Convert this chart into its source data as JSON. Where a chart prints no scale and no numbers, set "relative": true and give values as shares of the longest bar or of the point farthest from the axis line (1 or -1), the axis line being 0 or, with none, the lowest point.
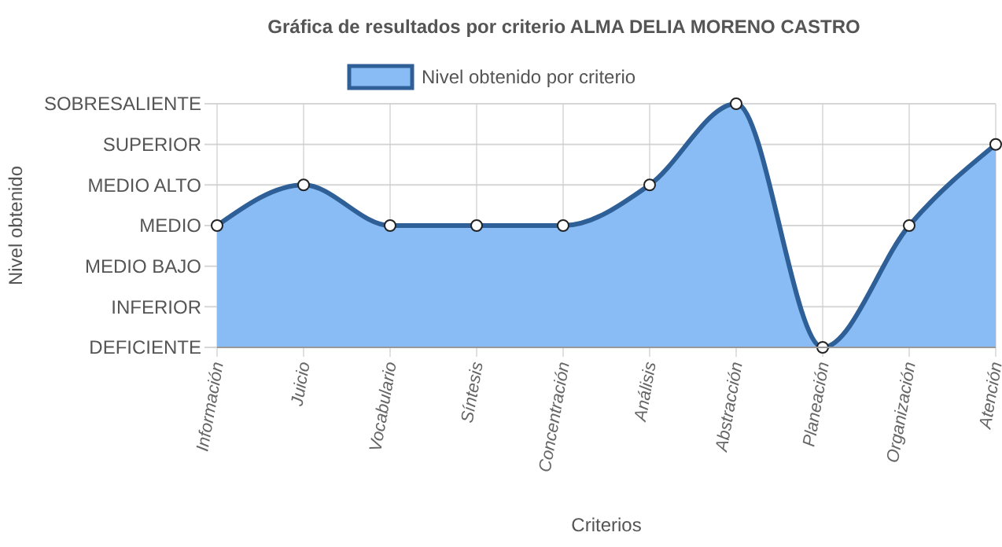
{
  "chart_data": {
    "type": "area",
    "title": "Gráfica de resultados por criterio ALMA DELIA MORENO CASTRO",
    "xlabel": "Criterios",
    "categories": [
      "Información",
      "Juicio",
      "Vocabulario",
      "Síntesis",
      "Concentración",
      "Análisis",
      "Abstracción",
      "Planeación",
      "Organización",
      "Atención"
    ],
    "series": [
      {
        "name": "Nivel obtenido por criterio",
        "color": "#2e5f97",
        "values": [
          0.5,
          0.667,
          0.5,
          0.5,
          0.5,
          0.667,
          1,
          0,
          0.5,
          0.833
        ]
      }
    ],
    "relative": true,
    "annotations": [
      "Nivel obtenido",
      "DEFICIENTE",
      "INFERIOR",
      "MEDIO BAJO",
      "MEDIO",
      "MEDIO ALTO",
      "SUPERIOR",
      "SOBRESALIENTE"
    ],
    "grid": true,
    "legend": "top",
    "marker": "circle",
    "line_style": "solid"
  }
}
